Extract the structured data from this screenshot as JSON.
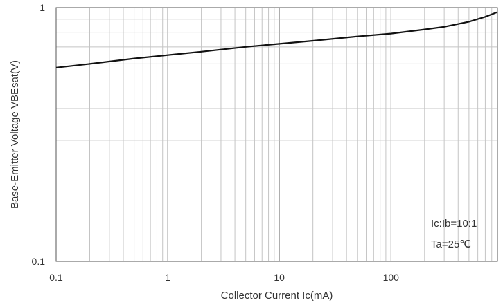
{
  "chart_data": {
    "type": "line",
    "title": "",
    "xlabel": "Collector Current   Ic(mA)",
    "ylabel": "Base-Emitter Voltage   VBEsat(V)",
    "x_scale": "log",
    "y_scale": "log",
    "xlim": [
      0.1,
      900
    ],
    "ylim": [
      0.1,
      1
    ],
    "x_tick_labels": [
      "0.1",
      "1",
      "10",
      "100"
    ],
    "x_tick_values": [
      0.1,
      1,
      10,
      100
    ],
    "y_tick_labels": [
      "0.1",
      "1"
    ],
    "y_tick_values": [
      0.1,
      1
    ],
    "grid": true,
    "annotations": [
      "Ic:Ib=10:1",
      "Ta=25℃"
    ],
    "series": [
      {
        "x": [
          0.1,
          0.2,
          0.5,
          1,
          2,
          5,
          10,
          20,
          50,
          100,
          200,
          300,
          500,
          700,
          900
        ],
        "y": [
          0.58,
          0.6,
          0.63,
          0.65,
          0.67,
          0.7,
          0.72,
          0.74,
          0.77,
          0.79,
          0.82,
          0.84,
          0.88,
          0.92,
          0.96
        ]
      }
    ]
  }
}
